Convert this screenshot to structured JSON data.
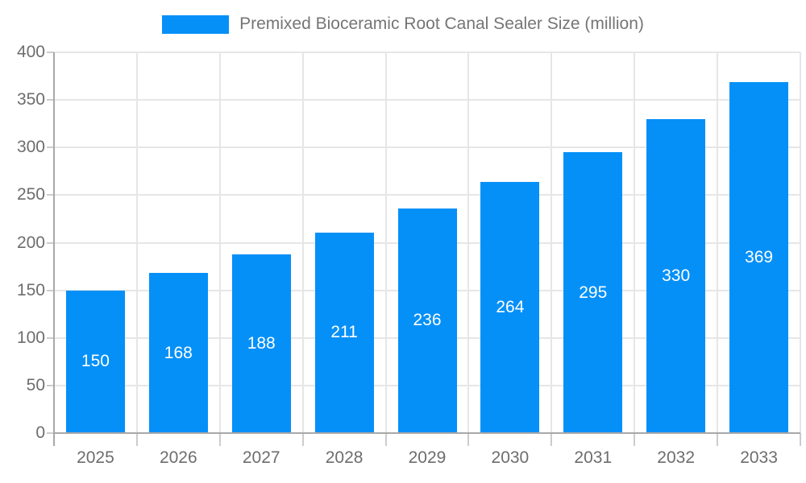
{
  "chart_data": {
    "type": "bar",
    "title": "Premixed Bioceramic Root Canal Sealer Size (million)",
    "legend": {
      "label": "Premixed Bioceramic Root Canal Sealer Size (million)",
      "position": "top-center",
      "swatch_color": "#0590f8"
    },
    "categories": [
      "2025",
      "2026",
      "2027",
      "2028",
      "2029",
      "2030",
      "2031",
      "2032",
      "2033"
    ],
    "series": [
      {
        "name": "Premixed Bioceramic Root Canal Sealer Size (million)",
        "values": [
          150,
          168,
          188,
          211,
          236,
          264,
          295,
          330,
          369
        ]
      }
    ],
    "xlabel": "",
    "ylabel": "",
    "ylim": [
      0,
      400
    ],
    "yticks": [
      0,
      50,
      100,
      150,
      200,
      250,
      300,
      350,
      400
    ],
    "grid": true,
    "bar_color": "#0590f8",
    "bar_label_color": "#ffffff",
    "axis_label_color": "#6d6d6d",
    "legend_text_color": "#757575",
    "axis_line_color": "#a8a8a8",
    "gridline_color": "#e6e6e6"
  }
}
